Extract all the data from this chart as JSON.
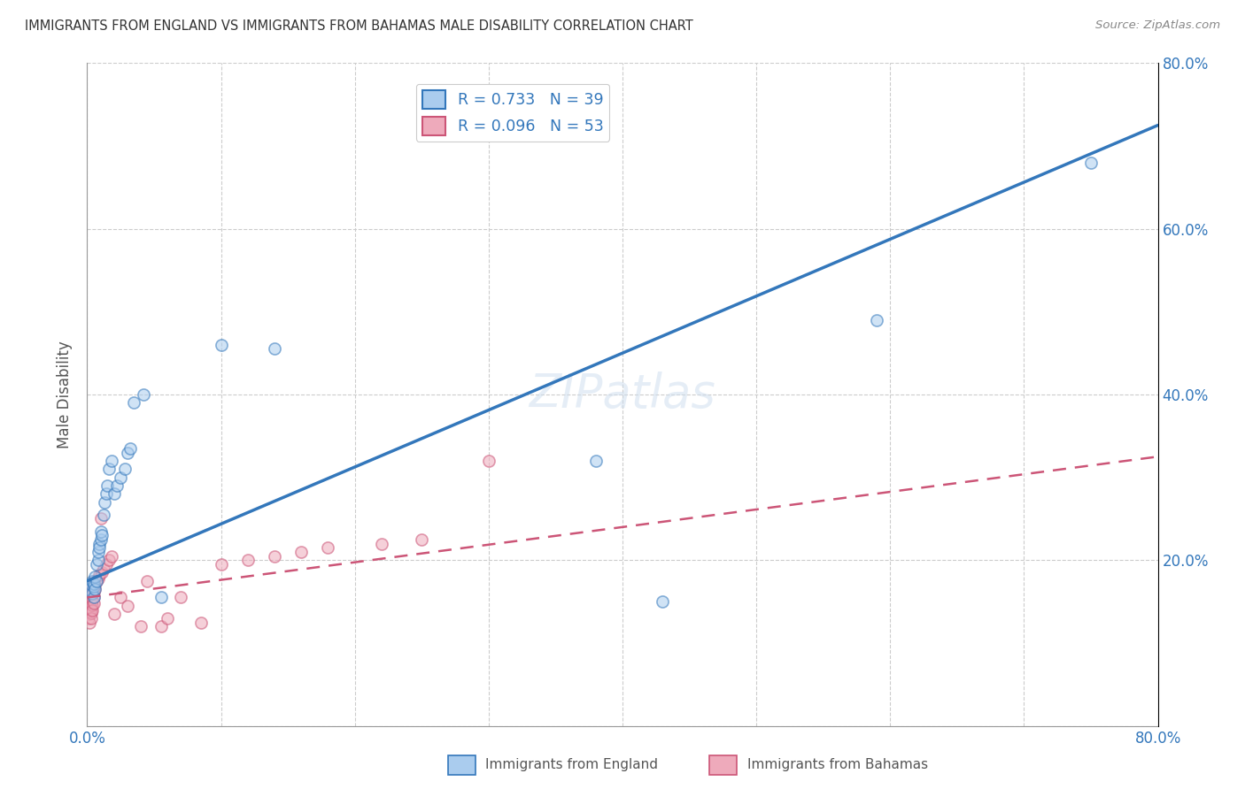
{
  "title": "IMMIGRANTS FROM ENGLAND VS IMMIGRANTS FROM BAHAMAS MALE DISABILITY CORRELATION CHART",
  "source": "Source: ZipAtlas.com",
  "ylabel": "Male Disability",
  "xlim": [
    0.0,
    0.8
  ],
  "ylim": [
    0.0,
    0.8
  ],
  "grid_color": "#cccccc",
  "background_color": "#ffffff",
  "england_color": "#aaccee",
  "bahamas_color": "#eeaabb",
  "england_line_color": "#3377bb",
  "bahamas_line_color": "#cc5577",
  "legend_r_england": "R = 0.733",
  "legend_n_england": "N = 39",
  "legend_r_bahamas": "R = 0.096",
  "legend_n_bahamas": "N = 53",
  "england_line_x0": 0.0,
  "england_line_y0": 0.175,
  "england_line_x1": 0.8,
  "england_line_y1": 0.725,
  "bahamas_line_x0": 0.0,
  "bahamas_line_y0": 0.155,
  "bahamas_line_x1": 0.8,
  "bahamas_line_y1": 0.325,
  "england_x": [
    0.002,
    0.003,
    0.004,
    0.004,
    0.005,
    0.005,
    0.005,
    0.006,
    0.006,
    0.007,
    0.007,
    0.008,
    0.008,
    0.009,
    0.009,
    0.01,
    0.01,
    0.011,
    0.012,
    0.013,
    0.014,
    0.015,
    0.016,
    0.018,
    0.02,
    0.022,
    0.025,
    0.028,
    0.03,
    0.032,
    0.035,
    0.042,
    0.055,
    0.1,
    0.14,
    0.38,
    0.43,
    0.59,
    0.75
  ],
  "england_y": [
    0.165,
    0.17,
    0.16,
    0.175,
    0.155,
    0.168,
    0.172,
    0.165,
    0.18,
    0.175,
    0.195,
    0.2,
    0.21,
    0.22,
    0.215,
    0.225,
    0.235,
    0.23,
    0.255,
    0.27,
    0.28,
    0.29,
    0.31,
    0.32,
    0.28,
    0.29,
    0.3,
    0.31,
    0.33,
    0.335,
    0.39,
    0.4,
    0.155,
    0.46,
    0.455,
    0.32,
    0.15,
    0.49,
    0.68
  ],
  "bahamas_x": [
    0.001,
    0.001,
    0.001,
    0.002,
    0.002,
    0.002,
    0.002,
    0.002,
    0.003,
    0.003,
    0.003,
    0.003,
    0.003,
    0.003,
    0.003,
    0.004,
    0.004,
    0.004,
    0.004,
    0.004,
    0.005,
    0.005,
    0.005,
    0.005,
    0.005,
    0.006,
    0.006,
    0.007,
    0.008,
    0.009,
    0.01,
    0.011,
    0.012,
    0.014,
    0.016,
    0.018,
    0.02,
    0.025,
    0.03,
    0.04,
    0.045,
    0.055,
    0.06,
    0.07,
    0.085,
    0.1,
    0.12,
    0.14,
    0.16,
    0.18,
    0.22,
    0.25,
    0.3
  ],
  "bahamas_y": [
    0.15,
    0.14,
    0.13,
    0.155,
    0.145,
    0.135,
    0.125,
    0.145,
    0.155,
    0.148,
    0.142,
    0.136,
    0.13,
    0.162,
    0.158,
    0.16,
    0.152,
    0.146,
    0.14,
    0.165,
    0.168,
    0.162,
    0.155,
    0.148,
    0.175,
    0.17,
    0.165,
    0.175,
    0.178,
    0.182,
    0.25,
    0.185,
    0.19,
    0.195,
    0.2,
    0.205,
    0.135,
    0.155,
    0.145,
    0.12,
    0.175,
    0.12,
    0.13,
    0.155,
    0.125,
    0.195,
    0.2,
    0.205,
    0.21,
    0.215,
    0.22,
    0.225,
    0.32
  ],
  "marker_size": 90,
  "marker_alpha": 0.55,
  "marker_linewidth": 1.2
}
